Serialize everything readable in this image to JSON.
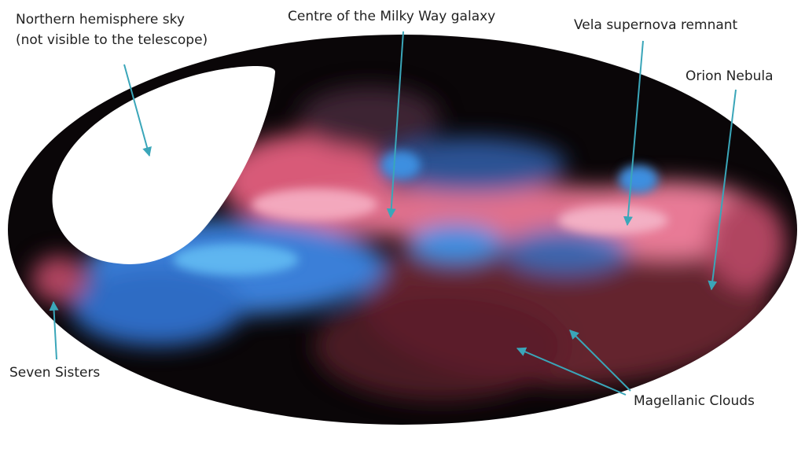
{
  "annotations": [
    {
      "lines": [
        "Northern hemisphere sky",
        "(not visible to the telescope)"
      ]
    },
    {
      "lines": [
        "Centre of the Milky Way galaxy"
      ]
    },
    {
      "lines": [
        "Vela supernova remnant"
      ]
    },
    {
      "lines": [
        "Orion Nebula"
      ]
    },
    {
      "lines": [
        "Seven Sisters"
      ]
    },
    {
      "lines": [
        "Magellanic Clouds"
      ]
    }
  ]
}
